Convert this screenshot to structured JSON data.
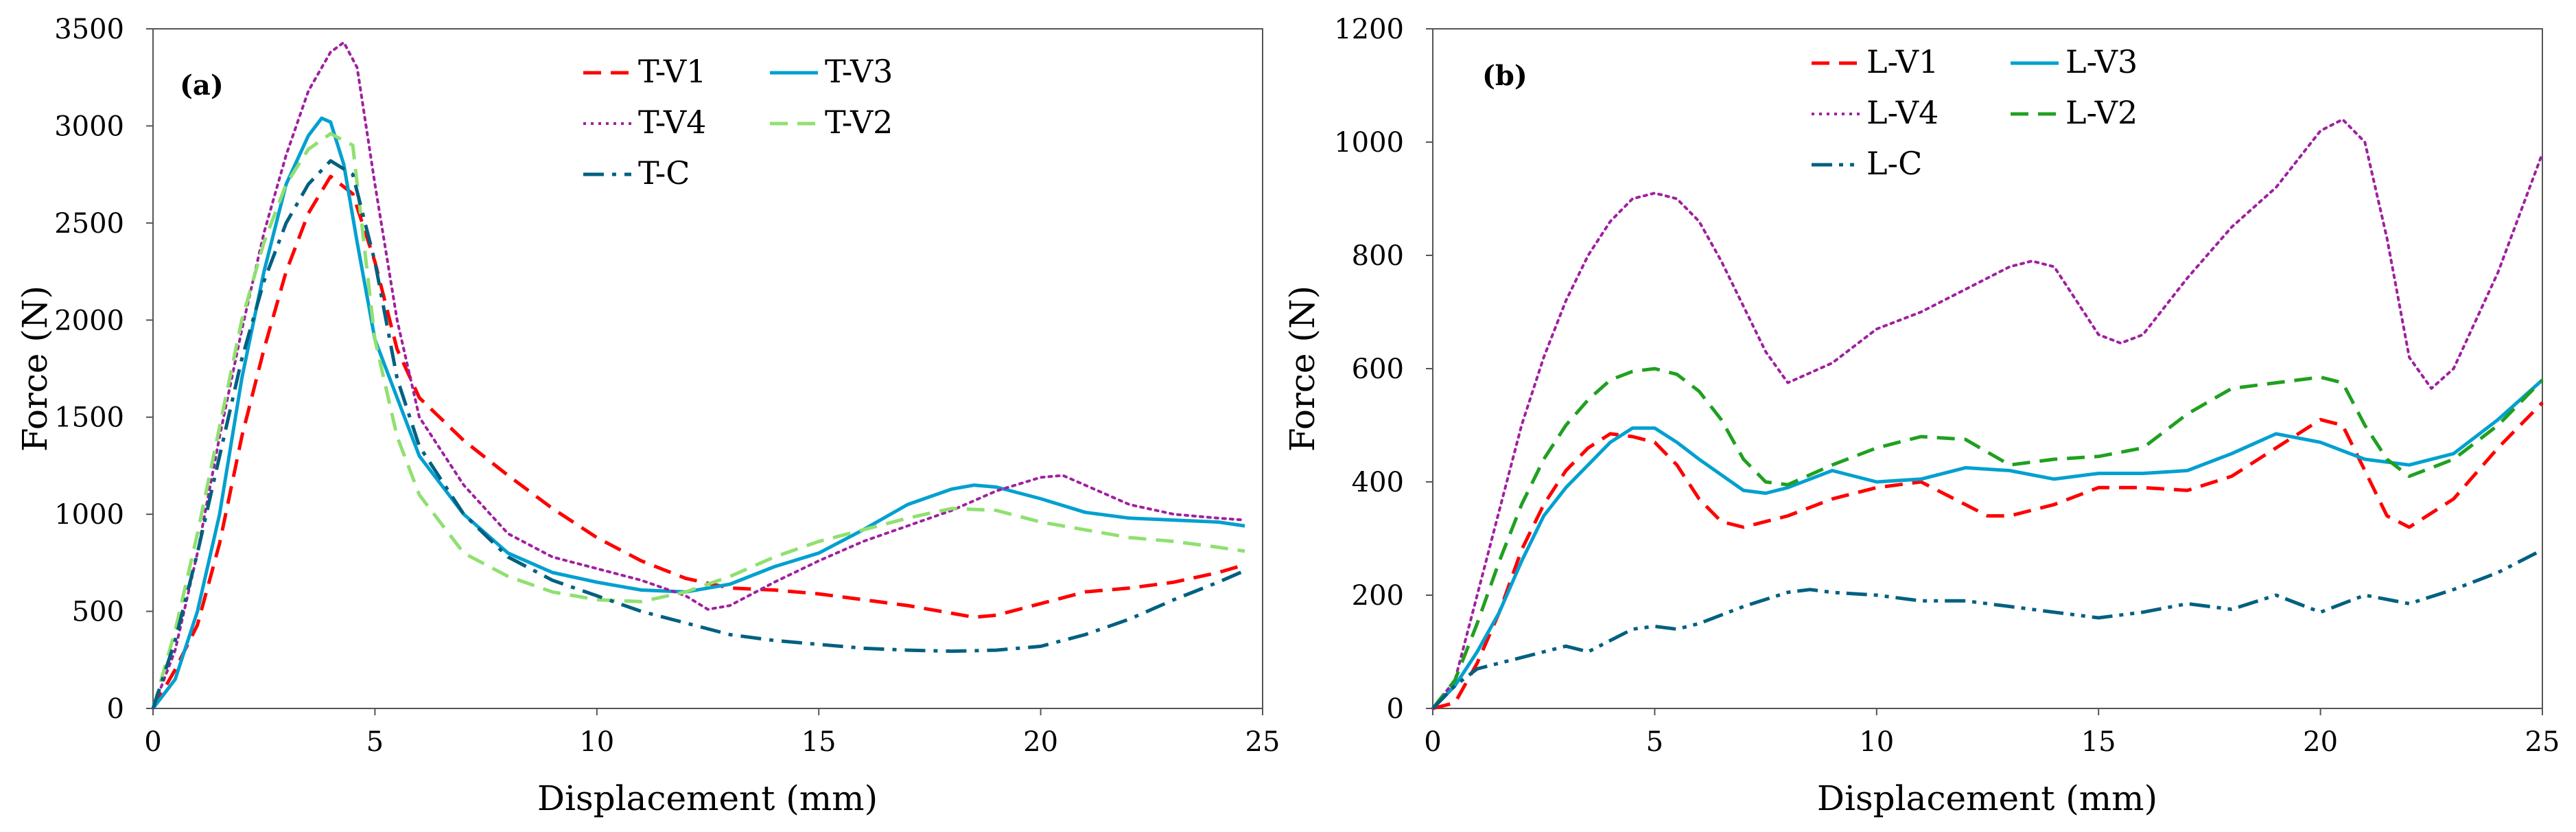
{
  "chart_data": [
    {
      "type": "line",
      "panel_label": "(a)",
      "xlabel": "Displacement (mm)",
      "ylabel": "Force (N)",
      "xlim": [
        0,
        25
      ],
      "ylim": [
        0,
        3500
      ],
      "xticks": [
        0,
        5,
        10,
        15,
        20,
        25
      ],
      "yticks": [
        0,
        500,
        1000,
        1500,
        2000,
        2500,
        3000,
        3500
      ],
      "grid": false,
      "legend_position": "top-center",
      "series": [
        {
          "name": "T-V1",
          "color": "#ff0000",
          "style": "dashed",
          "x": [
            0,
            0.5,
            1,
            1.5,
            2,
            2.5,
            3,
            3.5,
            4,
            4.5,
            5,
            5.5,
            6,
            7,
            8,
            9,
            10,
            11,
            12,
            13,
            14,
            15,
            16,
            17,
            18,
            18.5,
            19,
            20,
            21,
            22,
            23,
            24,
            24.6
          ],
          "y": [
            0,
            200,
            430,
            850,
            1400,
            1850,
            2250,
            2550,
            2740,
            2650,
            2300,
            1850,
            1600,
            1380,
            1200,
            1030,
            880,
            760,
            670,
            620,
            610,
            590,
            560,
            530,
            490,
            470,
            480,
            540,
            600,
            620,
            650,
            700,
            740
          ]
        },
        {
          "name": "T-V3",
          "color": "#00a0d0",
          "style": "solid",
          "x": [
            0,
            0.5,
            1,
            1.5,
            2,
            2.5,
            3,
            3.5,
            3.8,
            4,
            4.3,
            4.6,
            5,
            5.5,
            6,
            7,
            8,
            9,
            10,
            11,
            12,
            13,
            14,
            15,
            16,
            17,
            18,
            18.5,
            19,
            20,
            21,
            22,
            23,
            24,
            24.6
          ],
          "y": [
            0,
            150,
            500,
            1000,
            1700,
            2250,
            2700,
            2950,
            3040,
            3020,
            2800,
            2400,
            1900,
            1600,
            1300,
            1000,
            800,
            700,
            650,
            610,
            600,
            640,
            730,
            800,
            920,
            1050,
            1130,
            1150,
            1140,
            1080,
            1010,
            980,
            970,
            960,
            940
          ]
        },
        {
          "name": "T-V4",
          "color": "#a020a0",
          "style": "dotted",
          "x": [
            0,
            0.5,
            1,
            1.5,
            2,
            2.5,
            3,
            3.5,
            4,
            4.3,
            4.6,
            5,
            5.5,
            6,
            7,
            8,
            9,
            10,
            11,
            12,
            12.5,
            13,
            14,
            15,
            16,
            17,
            18,
            19,
            20,
            20.5,
            21,
            22,
            23,
            24,
            24.6
          ],
          "y": [
            0,
            300,
            800,
            1400,
            1950,
            2450,
            2850,
            3180,
            3380,
            3430,
            3300,
            2700,
            2000,
            1500,
            1150,
            900,
            780,
            720,
            660,
            580,
            510,
            530,
            650,
            760,
            860,
            940,
            1020,
            1120,
            1190,
            1200,
            1150,
            1050,
            1000,
            980,
            970
          ]
        },
        {
          "name": "T-V2",
          "color": "#90e070",
          "style": "dashed",
          "x": [
            0,
            0.5,
            1,
            1.5,
            2,
            2.5,
            3,
            3.5,
            4,
            4.5,
            5,
            5.5,
            6,
            7,
            8,
            9,
            10,
            11,
            12,
            13,
            14,
            15,
            16,
            17,
            18,
            19,
            20,
            21,
            22,
            23,
            24,
            24.6
          ],
          "y": [
            0,
            400,
            900,
            1450,
            2000,
            2400,
            2700,
            2880,
            2960,
            2900,
            1900,
            1400,
            1100,
            800,
            680,
            600,
            560,
            550,
            600,
            680,
            780,
            860,
            920,
            980,
            1030,
            1020,
            960,
            920,
            880,
            860,
            830,
            810
          ]
        },
        {
          "name": "T-C",
          "color": "#006080",
          "style": "dashdot",
          "x": [
            0,
            0.5,
            1,
            1.5,
            2,
            2.5,
            3,
            3.5,
            4,
            4.5,
            5,
            5.5,
            6,
            7,
            8,
            9,
            10,
            11,
            12,
            13,
            14,
            15,
            16,
            17,
            18,
            19,
            20,
            21,
            22,
            23,
            24,
            24.6
          ],
          "y": [
            0,
            350,
            800,
            1300,
            1800,
            2200,
            2500,
            2700,
            2820,
            2750,
            2300,
            1700,
            1350,
            1000,
            780,
            660,
            580,
            500,
            440,
            380,
            350,
            330,
            310,
            300,
            295,
            300,
            320,
            380,
            460,
            560,
            650,
            710
          ]
        }
      ]
    },
    {
      "type": "line",
      "panel_label": "(b)",
      "xlabel": "Displacement (mm)",
      "ylabel": "Force (N)",
      "xlim": [
        0,
        25
      ],
      "ylim": [
        0,
        1200
      ],
      "xticks": [
        0,
        5,
        10,
        15,
        20,
        25
      ],
      "yticks": [
        0,
        200,
        400,
        600,
        800,
        1000,
        1200
      ],
      "grid": false,
      "legend_position": "top-center",
      "series": [
        {
          "name": "L-V1",
          "color": "#ff0000",
          "style": "dashed",
          "x": [
            0,
            0.5,
            1,
            1.5,
            2,
            2.5,
            3,
            3.5,
            4,
            4.5,
            5,
            5.5,
            6,
            6.5,
            7,
            8,
            9,
            10,
            11,
            12,
            12.5,
            13,
            14,
            15,
            16,
            17,
            18,
            19,
            20,
            20.5,
            21,
            21.5,
            22,
            23,
            24,
            25
          ],
          "y": [
            0,
            10,
            80,
            170,
            280,
            360,
            420,
            460,
            485,
            480,
            470,
            430,
            370,
            330,
            320,
            340,
            370,
            390,
            400,
            360,
            340,
            340,
            360,
            390,
            390,
            385,
            410,
            460,
            510,
            500,
            420,
            340,
            320,
            370,
            460,
            540
          ]
        },
        {
          "name": "L-V3",
          "color": "#00a0d0",
          "style": "solid",
          "x": [
            0,
            0.5,
            1,
            1.5,
            2,
            2.5,
            3,
            3.5,
            4,
            4.5,
            5,
            5.5,
            6,
            7,
            7.5,
            8,
            9,
            10,
            11,
            12,
            13,
            14,
            15,
            16,
            17,
            18,
            19,
            20,
            21,
            22,
            23,
            24,
            25
          ],
          "y": [
            0,
            40,
            100,
            170,
            260,
            340,
            390,
            430,
            470,
            495,
            495,
            470,
            440,
            385,
            380,
            390,
            420,
            400,
            405,
            425,
            420,
            405,
            415,
            415,
            420,
            450,
            485,
            470,
            440,
            430,
            450,
            510,
            580
          ]
        },
        {
          "name": "L-V4",
          "color": "#a020a0",
          "style": "dotted",
          "x": [
            0,
            0.5,
            1,
            1.5,
            2,
            2.5,
            3,
            3.5,
            4,
            4.5,
            5,
            5.5,
            6,
            6.5,
            7,
            7.5,
            8,
            9,
            10,
            11,
            12,
            13,
            13.5,
            14,
            14.5,
            15,
            15.5,
            16,
            17,
            18,
            19,
            19.5,
            20,
            20.5,
            21,
            21.5,
            22,
            22.5,
            23,
            24,
            25
          ],
          "y": [
            0,
            50,
            200,
            350,
            500,
            620,
            720,
            800,
            860,
            900,
            910,
            900,
            860,
            790,
            710,
            630,
            575,
            610,
            670,
            700,
            740,
            780,
            790,
            780,
            720,
            660,
            645,
            660,
            760,
            850,
            920,
            970,
            1020,
            1040,
            1000,
            830,
            620,
            565,
            600,
            770,
            980
          ]
        },
        {
          "name": "L-V2",
          "color": "#20a020",
          "style": "dashed",
          "x": [
            0,
            0.5,
            1,
            1.5,
            2,
            2.5,
            3,
            3.5,
            4,
            4.5,
            5,
            5.5,
            6,
            6.5,
            7,
            7.5,
            8,
            9,
            10,
            11,
            12,
            13,
            14,
            15,
            16,
            17,
            18,
            19,
            20,
            20.5,
            21,
            21.5,
            22,
            23,
            24,
            25
          ],
          "y": [
            0,
            50,
            150,
            260,
            360,
            440,
            500,
            545,
            580,
            595,
            600,
            590,
            560,
            510,
            440,
            400,
            395,
            430,
            460,
            480,
            475,
            430,
            440,
            445,
            460,
            520,
            565,
            575,
            585,
            575,
            500,
            440,
            410,
            440,
            500,
            580
          ]
        },
        {
          "name": "L-C",
          "color": "#006080",
          "style": "dashdotdot",
          "x": [
            0,
            0.5,
            1,
            1.5,
            2,
            2.5,
            3,
            3.5,
            4,
            4.5,
            5,
            5.5,
            6,
            7,
            8,
            8.5,
            9,
            10,
            11,
            12,
            13,
            14,
            15,
            16,
            17,
            18,
            19,
            20,
            21,
            22,
            23,
            24,
            25
          ],
          "y": [
            0,
            40,
            70,
            80,
            90,
            100,
            110,
            100,
            120,
            140,
            145,
            140,
            150,
            180,
            205,
            210,
            205,
            200,
            190,
            190,
            180,
            170,
            160,
            170,
            185,
            175,
            200,
            170,
            200,
            185,
            210,
            240,
            280
          ]
        }
      ]
    }
  ]
}
